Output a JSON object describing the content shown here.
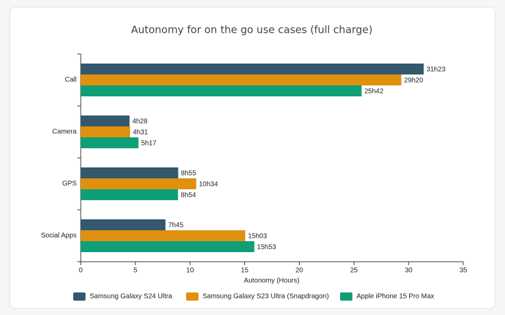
{
  "chart_data": {
    "type": "hbar",
    "title": "Autonomy for on the go use cases (full charge)",
    "categories": [
      "Call",
      "Camera",
      "GPS",
      "Social Apps"
    ],
    "series": [
      {
        "name": "Samsung Galaxy S24 Ultra",
        "color": "#34586e",
        "values": [
          31.3833,
          4.4667,
          8.9167,
          7.75
        ],
        "value_labels": [
          "31h23",
          "4h28",
          "8h55",
          "7h45"
        ]
      },
      {
        "name": "Samsung Galaxy S23 Ultra (Snapdragon)",
        "color": "#e0900f",
        "values": [
          29.3333,
          4.5167,
          10.5667,
          15.05
        ],
        "value_labels": [
          "29h20",
          "4h31",
          "10h34",
          "15h03"
        ]
      },
      {
        "name": "Apple iPhone 15 Pro Max",
        "color": "#0f9f77",
        "values": [
          25.7,
          5.2833,
          8.9,
          15.8833
        ],
        "value_labels": [
          "25h42",
          "5h17",
          "8h54",
          "15h53"
        ]
      }
    ],
    "x_label": "Autonomy (Hours)",
    "xlim": [
      0,
      35
    ],
    "xticks": [
      0,
      5,
      10,
      15,
      20,
      25,
      30,
      35
    ],
    "grid": false
  }
}
